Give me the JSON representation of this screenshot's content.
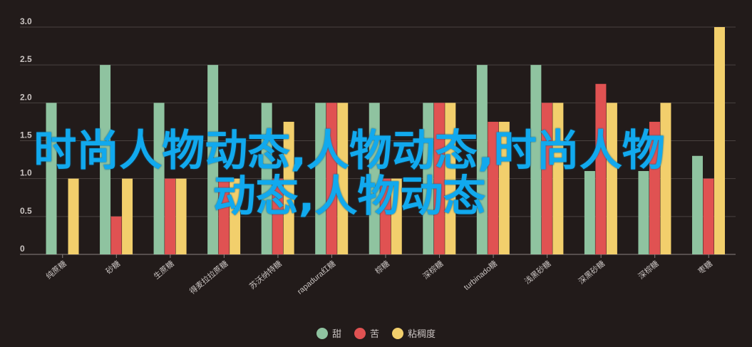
{
  "overlay_text": "时尚人物动态,人物动态,时尚人物动态,人物动态",
  "chart_data": {
    "type": "bar",
    "categories": [
      "纯蔗糖",
      "砂糖",
      "生蔗糖",
      "得麦拉拉蔗糖",
      "苏沃纳特糖",
      "rapadura红糖",
      "棕糖",
      "深棕糖",
      "turbinado糖",
      "浅黑砂糖",
      "深黑砂糖",
      "深棕糖",
      "枣糖"
    ],
    "series": [
      {
        "name": "甜",
        "color": "#8fc3a0",
        "values": [
          2.0,
          2.5,
          2.0,
          2.5,
          2.0,
          2.0,
          2.0,
          2.0,
          2.5,
          2.5,
          1.1,
          1.1,
          1.3
        ]
      },
      {
        "name": "苦",
        "color": "#e05252",
        "values": [
          0,
          0.5,
          1.0,
          1.0,
          1.0,
          2.0,
          1.0,
          2.0,
          1.75,
          2.0,
          2.25,
          1.75,
          1.0
        ]
      },
      {
        "name": "粘稠度",
        "color": "#f2cf6c",
        "values": [
          1.0,
          1.0,
          1.0,
          1.0,
          1.75,
          2.0,
          1.0,
          2.0,
          1.75,
          2.0,
          2.0,
          2.0,
          3.0
        ]
      }
    ],
    "ylim": [
      0,
      3.0
    ],
    "yticks": [
      "0",
      "0.5",
      "1.0",
      "1.5",
      "2.0",
      "2.5",
      "3.0"
    ],
    "grid": true,
    "legend": "bottom-center"
  }
}
